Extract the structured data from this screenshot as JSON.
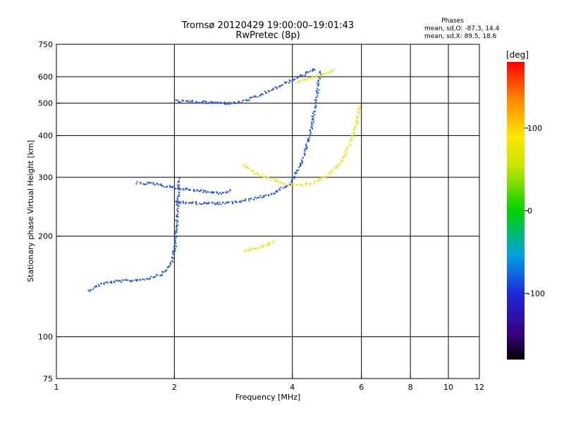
{
  "chart_data": {
    "type": "scatter",
    "title": "Tromsø 20120429 19:00:00–19:01:43",
    "subtitle": "RwPretec (8p)",
    "xlabel": "Frequency [MHz]",
    "ylabel": "Stationary phase Virtual Height [km]",
    "x_scale": "log",
    "y_scale": "log",
    "xlim": [
      1,
      12
    ],
    "ylim": [
      75,
      750
    ],
    "x_ticks": [
      1,
      2,
      4,
      6,
      8,
      10,
      12
    ],
    "y_ticks": [
      75,
      100,
      200,
      300,
      400,
      500,
      600,
      750
    ],
    "x_grid": [
      2,
      4,
      6,
      8,
      10
    ],
    "y_grid": [
      100,
      200,
      300,
      400,
      500,
      600
    ],
    "grid": true,
    "phases_info": {
      "heading": "Phases",
      "line1": "mean, sd,O: -87.3, 14.4",
      "line2": "mean, sd,X:  89.5, 18.6"
    },
    "colorbar": {
      "label": "[deg]",
      "range": [
        -180,
        180
      ],
      "ticks": [
        {
          "value": 100,
          "label": "100"
        },
        {
          "value": 0,
          "label": "0"
        },
        {
          "value": -100,
          "label": "-100"
        }
      ],
      "colormap": "rainbow",
      "position": "right"
    },
    "series": [
      {
        "mode": "O",
        "phase_deg": -87,
        "color": "#1e50e6",
        "traces": [
          {
            "points": [
              [
                1.2,
                138
              ],
              [
                1.3,
                145
              ],
              [
                1.4,
                147
              ],
              [
                1.55,
                148
              ],
              [
                1.7,
                150
              ],
              [
                1.85,
                155
              ],
              [
                1.95,
                165
              ],
              [
                2.0,
                185
              ],
              [
                2.02,
                220
              ],
              [
                2.05,
                300
              ]
            ]
          },
          {
            "points": [
              [
                2.0,
                255
              ],
              [
                2.3,
                252
              ],
              [
                2.7,
                252
              ],
              [
                3.0,
                256
              ],
              [
                3.5,
                268
              ],
              [
                3.9,
                285
              ],
              [
                4.2,
                330
              ],
              [
                4.45,
                420
              ],
              [
                4.6,
                540
              ],
              [
                4.7,
                630
              ]
            ]
          },
          {
            "points": [
              [
                2.0,
                510
              ],
              [
                2.4,
                505
              ],
              [
                2.8,
                502
              ],
              [
                3.0,
                510
              ],
              [
                3.3,
                530
              ],
              [
                3.7,
                565
              ],
              [
                4.1,
                600
              ],
              [
                4.4,
                622
              ],
              [
                4.6,
                638
              ]
            ]
          },
          {
            "points": [
              [
                1.6,
                290
              ],
              [
                1.8,
                288
              ],
              [
                2.0,
                280
              ],
              [
                2.3,
                275
              ],
              [
                2.6,
                270
              ],
              [
                2.8,
                275
              ]
            ]
          }
        ]
      },
      {
        "mode": "X",
        "phase_deg": 90,
        "color": "#e8e60a",
        "traces": [
          {
            "points": [
              [
                3.0,
                330
              ],
              [
                3.2,
                310
              ],
              [
                3.5,
                298
              ],
              [
                3.8,
                288
              ],
              [
                4.1,
                285
              ],
              [
                4.5,
                290
              ],
              [
                4.9,
                305
              ],
              [
                5.3,
                335
              ],
              [
                5.6,
                380
              ],
              [
                5.8,
                430
              ],
              [
                5.9,
                500
              ]
            ]
          },
          {
            "points": [
              [
                4.1,
                580
              ],
              [
                4.4,
                595
              ],
              [
                4.8,
                612
              ],
              [
                5.1,
                630
              ]
            ]
          },
          {
            "points": [
              [
                3.0,
                182
              ],
              [
                3.2,
                185
              ],
              [
                3.4,
                188
              ],
              [
                3.6,
                195
              ]
            ]
          }
        ]
      }
    ]
  }
}
